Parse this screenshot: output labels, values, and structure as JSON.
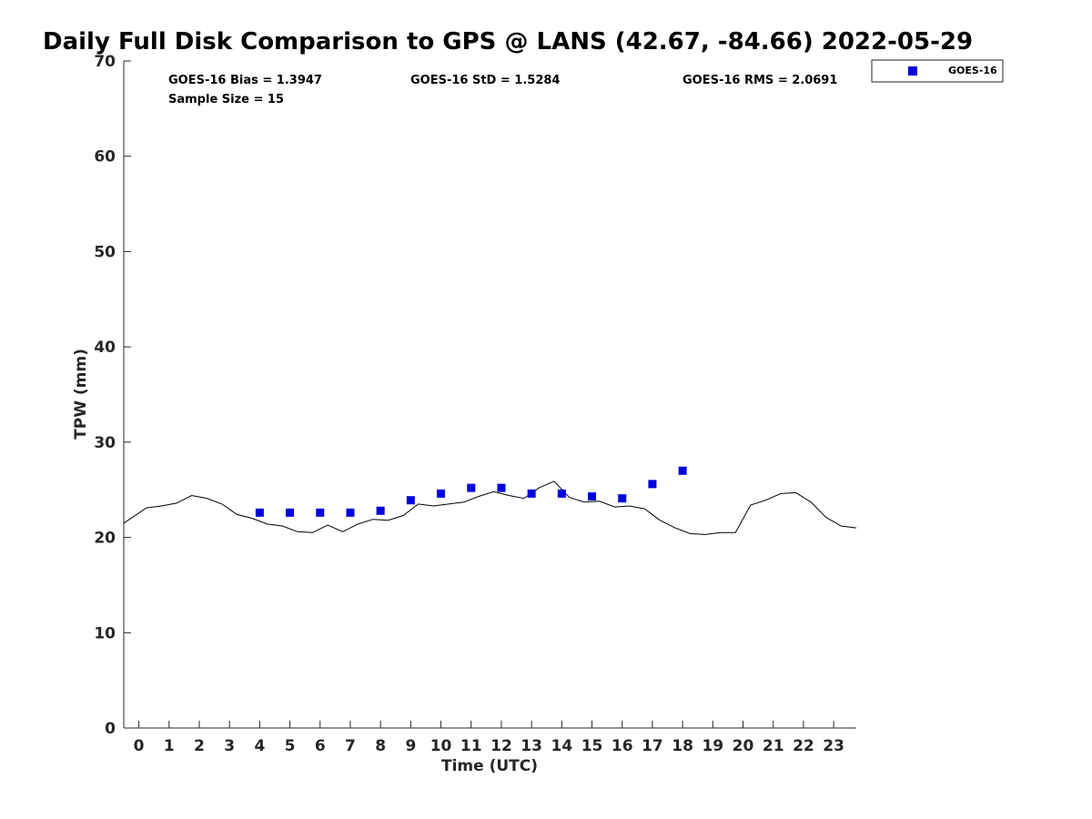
{
  "chart_data": {
    "type": "line",
    "title": "Daily Full Disk Comparison to GPS @ LANS (42.67, -84.66) 2022-05-29",
    "xlabel": "Time (UTC)",
    "ylabel": "TPW (mm)",
    "xlim": [
      -0.5,
      23.75
    ],
    "ylim": [
      0,
      70
    ],
    "xticks": [
      0,
      1,
      2,
      3,
      4,
      5,
      6,
      7,
      8,
      9,
      10,
      11,
      12,
      13,
      14,
      15,
      16,
      17,
      18,
      19,
      20,
      21,
      22,
      23
    ],
    "yticks": [
      0,
      10,
      20,
      30,
      40,
      50,
      60,
      70
    ],
    "grid": false,
    "legend_position": "top-right outside",
    "stats": {
      "bias": "GOES-16 Bias = 1.3947",
      "std": "GOES-16 StD = 1.5284",
      "rms": "GOES-16 RMS = 2.0691",
      "sample": "Sample Size = 15"
    },
    "series": [
      {
        "kind": "line",
        "color": "#000000",
        "x": [
          -0.5,
          0.25,
          0.75,
          1.25,
          1.75,
          2.25,
          2.75,
          3.25,
          3.75,
          4.25,
          4.75,
          5.25,
          5.75,
          6.25,
          6.75,
          7.25,
          7.75,
          8.25,
          8.75,
          9.25,
          9.75,
          10.25,
          10.75,
          11.25,
          11.75,
          12.25,
          12.75,
          13.25,
          13.75,
          14.25,
          14.75,
          15.25,
          15.75,
          16.25,
          16.75,
          17.25,
          17.75,
          18.25,
          18.75,
          19.25,
          19.75,
          20.25,
          20.75,
          21.25,
          21.75,
          22.25,
          22.75,
          23.25,
          23.75
        ],
        "values": [
          21.5,
          23.1,
          23.3,
          23.6,
          24.4,
          24.1,
          23.5,
          22.4,
          22.0,
          21.4,
          21.2,
          20.6,
          20.5,
          21.3,
          20.6,
          21.4,
          21.9,
          21.8,
          22.3,
          23.5,
          23.3,
          23.5,
          23.7,
          24.3,
          24.8,
          24.4,
          24.1,
          25.2,
          25.9,
          24.2,
          23.7,
          23.8,
          23.2,
          23.3,
          23.0,
          21.8,
          21.0,
          20.4,
          20.3,
          20.5,
          20.5,
          23.4,
          23.9,
          24.6,
          24.7,
          23.7,
          22.1,
          21.2,
          21.0
        ]
      },
      {
        "name": "GOES-16",
        "kind": "scatter",
        "marker": "square",
        "color": "#0000dd",
        "x": [
          4,
          5,
          6,
          7,
          8,
          9,
          10,
          11,
          12,
          13,
          14,
          15,
          16,
          17,
          18
        ],
        "values": [
          22.6,
          22.6,
          22.6,
          22.6,
          22.8,
          23.9,
          24.6,
          25.2,
          25.2,
          24.6,
          24.6,
          24.3,
          24.1,
          25.6,
          27.0
        ]
      }
    ]
  }
}
